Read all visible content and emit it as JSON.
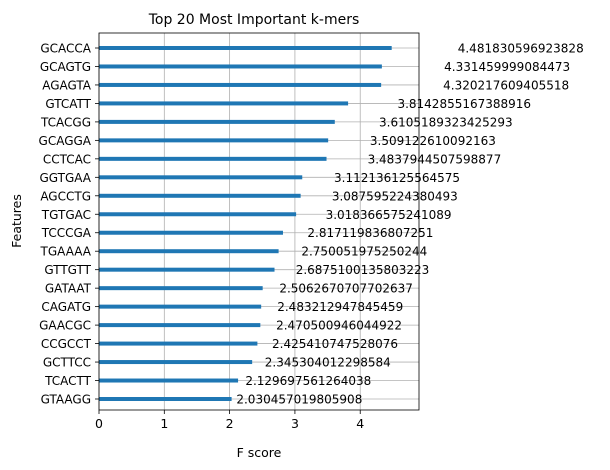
{
  "chart_data": {
    "type": "bar",
    "orientation": "horizontal",
    "title": "Top 20 Most Important k-mers",
    "xlabel": "F score",
    "ylabel": "Features",
    "xlim": [
      0,
      4.9
    ],
    "xticks": [
      0,
      1,
      2,
      3,
      4
    ],
    "grid": true,
    "bar_color": "#1f77b4",
    "categories": [
      "GCACCA",
      "GCAGTG",
      "AGAGTA",
      "GTCATT",
      "TCACGG",
      "GCAGGA",
      "CCTCAC",
      "GGTGAA",
      "AGCCTG",
      "TGTGAC",
      "TCCCGA",
      "TGAAAA",
      "GTTGTT",
      "GATAAT",
      "CAGATG",
      "GAACGC",
      "CCGCCT",
      "GCTTCC",
      "TCACTT",
      "GTAAGG"
    ],
    "values": [
      4.481830596923828,
      4.331459999084473,
      4.320217609405518,
      3.8142855167388916,
      3.6105189323425293,
      3.509122610092163,
      3.4837944507598877,
      3.112136125564575,
      3.087595224380493,
      3.018366575241089,
      2.817119836807251,
      2.750051975250244,
      2.6875100135803223,
      2.5062670707702637,
      2.483212947845459,
      2.470500946044922,
      2.425410747528076,
      2.345304012298584,
      2.129697561264038,
      2.030457019805908
    ],
    "data_labels": [
      "4.481830596923828",
      "4.331459999084473",
      "4.320217609405518",
      "3.8142855167388916",
      "3.6105189323425293",
      "3.509122610092163",
      "3.4837944507598877",
      "3.112136125564575",
      "3.087595224380493",
      "3.018366575241089",
      "2.817119836807251",
      "2.750051975250244",
      "2.6875100135803223",
      "2.5062670707702637",
      "2.483212947845459",
      "2.470500946044922",
      "2.425410747528076",
      "2.345304012298584",
      "2.129697561264038",
      "2.030457019805908"
    ]
  }
}
